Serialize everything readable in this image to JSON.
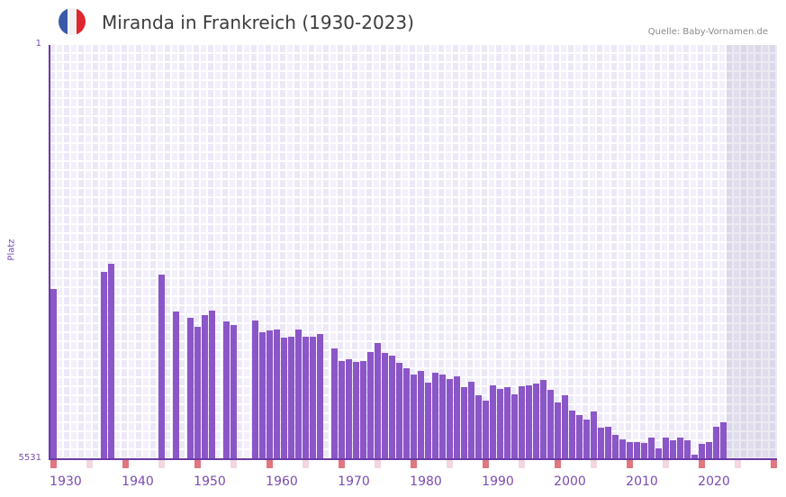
{
  "header": {
    "title": "Miranda in Frankreich (1930-2023)",
    "source": "Quelle: Baby-Vornamen.de",
    "flag": {
      "name": "france-flag",
      "colors": [
        "#3a5aa8",
        "#f2f2f2",
        "#e0262f"
      ]
    }
  },
  "colors": {
    "bar": "#8b56c7",
    "axis": "#6a3aa8",
    "marker_decade": "#e07680",
    "marker_half": "#f3d7e0",
    "label": "#7a4bb5"
  },
  "chart_data": {
    "type": "bar",
    "title": "Miranda in Frankreich (1930-2023)",
    "xlabel": "",
    "ylabel": "Platz",
    "y_inverted": true,
    "ylim": [
      1,
      5531
    ],
    "y_ticks": [
      "1",
      "5531"
    ],
    "x_range": [
      1930,
      2030
    ],
    "x_ticks": [
      "1930",
      "1940",
      "1950",
      "1960",
      "1970",
      "1980",
      "1990",
      "2000",
      "2010",
      "2020"
    ],
    "grid": true,
    "shaded_future_from": 2024,
    "categories": [
      1930,
      1937,
      1938,
      1945,
      1947,
      1949,
      1950,
      1951,
      1952,
      1954,
      1955,
      1958,
      1959,
      1960,
      1961,
      1962,
      1963,
      1964,
      1965,
      1966,
      1967,
      1969,
      1970,
      1971,
      1972,
      1973,
      1974,
      1975,
      1976,
      1977,
      1978,
      1979,
      1980,
      1981,
      1982,
      1983,
      1984,
      1985,
      1986,
      1987,
      1988,
      1989,
      1990,
      1991,
      1992,
      1993,
      1994,
      1995,
      1996,
      1997,
      1998,
      1999,
      2000,
      2001,
      2002,
      2003,
      2004,
      2005,
      2006,
      2007,
      2008,
      2009,
      2010,
      2011,
      2012,
      2013,
      2014,
      2015,
      2016,
      2017,
      2018,
      2019,
      2020,
      2021,
      2022,
      2023
    ],
    "values": [
      3259,
      3030,
      2922,
      3066,
      3559,
      3643,
      3763,
      3607,
      3547,
      3691,
      3739,
      3679,
      3835,
      3811,
      3799,
      3907,
      3895,
      3799,
      3895,
      3895,
      3859,
      4052,
      4220,
      4196,
      4232,
      4220,
      4100,
      3980,
      4112,
      4148,
      4244,
      4316,
      4400,
      4352,
      4509,
      4376,
      4400,
      4460,
      4424,
      4569,
      4497,
      4677,
      4749,
      4545,
      4593,
      4569,
      4665,
      4557,
      4545,
      4521,
      4473,
      4605,
      4773,
      4677,
      4881,
      4941,
      5001,
      4893,
      5110,
      5098,
      5206,
      5266,
      5302,
      5302,
      5314,
      5242,
      5386,
      5242,
      5278,
      5242,
      5278,
      5470,
      5326,
      5302,
      5098,
      5038
    ]
  }
}
